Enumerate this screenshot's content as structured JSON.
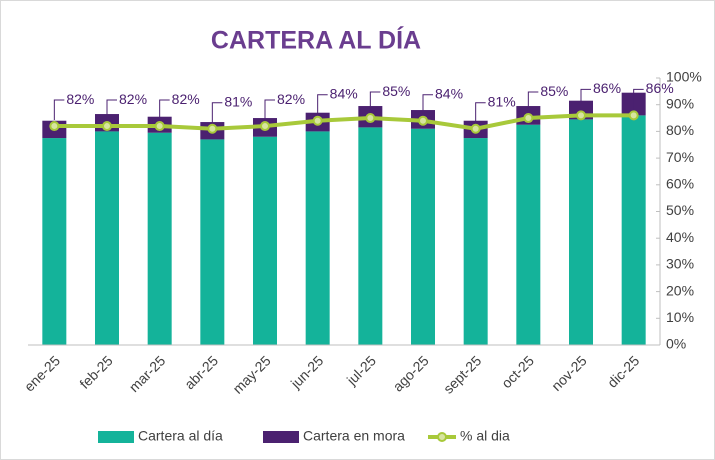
{
  "chart_data": {
    "type": "combo",
    "title": "CARTERA AL DÍA",
    "categories": [
      "ene-25",
      "feb-25",
      "mar-25",
      "abr-25",
      "may-25",
      "jun-25",
      "jul-25",
      "ago-25",
      "sept-25",
      "oct-25",
      "nov-25",
      "dic-25"
    ],
    "series": [
      {
        "name": "Cartera al día",
        "type": "bar",
        "color": "#14b39a",
        "values": [
          77.5,
          80,
          79.5,
          77,
          78,
          80,
          81.5,
          81,
          77.5,
          82.5,
          84.5,
          86
        ]
      },
      {
        "name": "Cartera en mora",
        "type": "bar",
        "color": "#4b2170",
        "values": [
          6.5,
          6.5,
          6,
          6.5,
          7,
          7,
          8,
          7,
          6.5,
          7,
          7,
          8.5
        ]
      },
      {
        "name": "% al dia",
        "type": "line",
        "color": "#a8c93a",
        "values": [
          82,
          82,
          82,
          81,
          82,
          84,
          85,
          84,
          81,
          85,
          86,
          86
        ],
        "value_labels": [
          "82%",
          "82%",
          "82%",
          "81%",
          "82%",
          "84%",
          "85%",
          "84%",
          "81%",
          "85%",
          "86%",
          "86%"
        ]
      }
    ],
    "ylim": [
      0,
      100
    ],
    "yticks": [
      {
        "value": 0,
        "label": "0%"
      },
      {
        "value": 10,
        "label": "10%"
      },
      {
        "value": 20,
        "label": "20%"
      },
      {
        "value": 30,
        "label": "30%"
      },
      {
        "value": 40,
        "label": "40%"
      },
      {
        "value": 50,
        "label": "50%"
      },
      {
        "value": 60,
        "label": "60%"
      },
      {
        "value": 70,
        "label": "70%"
      },
      {
        "value": 80,
        "label": "80%"
      },
      {
        "value": 90,
        "label": "90%"
      },
      {
        "value": 100,
        "label": "100%"
      }
    ]
  }
}
